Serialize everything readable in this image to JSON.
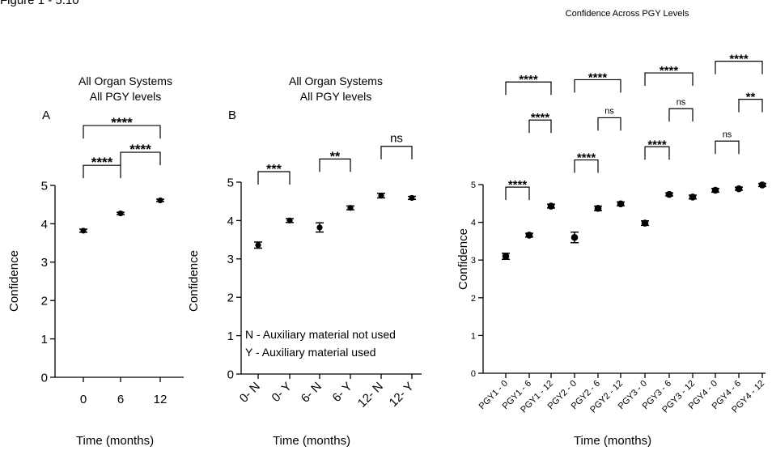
{
  "figure_label": "Figure 1 - 5.10",
  "chart_data": [
    {
      "type": "scatter",
      "panel_letter": "A",
      "title": [
        "All Organ Systems",
        "All PGY levels"
      ],
      "xlabel": "Time (months)",
      "ylabel": "Confidence",
      "ylim": [
        0,
        5
      ],
      "yticks": [
        "0",
        "1",
        "2",
        "3",
        "4",
        "5"
      ],
      "categories": [
        "0",
        "6",
        "12"
      ],
      "values": [
        3.82,
        4.27,
        4.61
      ],
      "errors": [
        0.04,
        0.03,
        0.03
      ],
      "significance": [
        {
          "from": 0,
          "to": 1,
          "label": "****",
          "level": 0
        },
        {
          "from": 1,
          "to": 2,
          "label": "****",
          "level": 0
        },
        {
          "from": 0,
          "to": 2,
          "label": "****",
          "level": 1
        }
      ],
      "legend_notes": []
    },
    {
      "type": "scatter",
      "panel_letter": "B",
      "title": [
        "All Organ Systems",
        "All PGY levels"
      ],
      "xlabel": "Time (months)",
      "ylabel": "Confidence",
      "ylim": [
        0,
        5
      ],
      "yticks": [
        "0",
        "1",
        "2",
        "3",
        "4",
        "5"
      ],
      "categories": [
        "0- N",
        "0- Y",
        "6- N",
        "6- Y",
        "12- N",
        "12- Y"
      ],
      "values": [
        3.36,
        4.0,
        3.82,
        4.33,
        4.65,
        4.59
      ],
      "errors": [
        0.08,
        0.05,
        0.12,
        0.05,
        0.06,
        0.04
      ],
      "significance": [
        {
          "from": 0,
          "to": 1,
          "label": "***",
          "level": 0
        },
        {
          "from": 2,
          "to": 3,
          "label": "**",
          "level": 0
        },
        {
          "from": 4,
          "to": 5,
          "label": "ns",
          "level": 0
        }
      ],
      "legend_notes": [
        "N - Auxiliary material not used",
        "Y - Auxiliary material used"
      ]
    },
    {
      "type": "scatter",
      "panel_letter": "",
      "title": [
        "Confidence Across PGY Levels"
      ],
      "xlabel": "Time (months)",
      "ylabel": "Confidence",
      "ylim": [
        0,
        5
      ],
      "yticks": [
        "0",
        "1",
        "2",
        "3",
        "4",
        "5"
      ],
      "categories": [
        "PGY1 - 0",
        "PGY1 - 6",
        "PGY1 - 12",
        "PGY2 - 0",
        "PGY2 - 6",
        "PGY2 - 12",
        "PGY3 - 0",
        "PGY3 - 6",
        "PGY3 - 12",
        "PGY4 - 0",
        "PGY4 - 6",
        "PGY4 - 12"
      ],
      "values": [
        3.1,
        3.66,
        4.43,
        3.6,
        4.37,
        4.49,
        3.98,
        4.74,
        4.67,
        4.85,
        4.89,
        4.99
      ],
      "errors": [
        0.08,
        0.05,
        0.05,
        0.14,
        0.06,
        0.05,
        0.06,
        0.04,
        0.05,
        0.05,
        0.04,
        0.04
      ],
      "significance": [
        {
          "from": 0,
          "to": 1,
          "label": "****",
          "level": 0
        },
        {
          "from": 1,
          "to": 2,
          "label": "****",
          "level": 1
        },
        {
          "from": 0,
          "to": 2,
          "label": "****",
          "level": 2
        },
        {
          "from": 3,
          "to": 4,
          "label": "****",
          "level": 0
        },
        {
          "from": 4,
          "to": 5,
          "label": "ns",
          "level": 1
        },
        {
          "from": 3,
          "to": 5,
          "label": "****",
          "level": 2
        },
        {
          "from": 6,
          "to": 7,
          "label": "****",
          "level": 0
        },
        {
          "from": 7,
          "to": 8,
          "label": "ns",
          "level": 1
        },
        {
          "from": 6,
          "to": 8,
          "label": "****",
          "level": 2
        },
        {
          "from": 9,
          "to": 10,
          "label": "ns",
          "level": 0
        },
        {
          "from": 10,
          "to": 11,
          "label": "**",
          "level": 1
        },
        {
          "from": 9,
          "to": 11,
          "label": "****",
          "level": 2
        }
      ],
      "legend_notes": []
    }
  ]
}
